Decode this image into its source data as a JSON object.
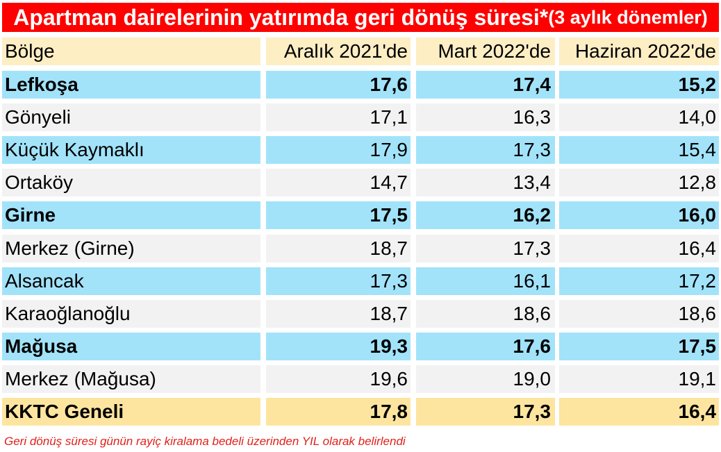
{
  "title": {
    "main": "Apartman dairelerinin yatırımda geri dönüş süresi*",
    "sub": "(3 aylık dönemler)"
  },
  "table": {
    "columns": [
      "Bölge",
      "Aralık 2021'de",
      "Mart 2022'de",
      "Haziran 2022'de"
    ],
    "rows": [
      {
        "region": "Lefkoşa",
        "v1": "17,6",
        "v2": "17,4",
        "v3": "15,2"
      },
      {
        "region": "Gönyeli",
        "v1": "17,1",
        "v2": "16,3",
        "v3": "14,0"
      },
      {
        "region": "Küçük Kaymaklı",
        "v1": "17,9",
        "v2": "17,3",
        "v3": "15,4"
      },
      {
        "region": "Ortaköy",
        "v1": "14,7",
        "v2": "13,4",
        "v3": "12,8"
      },
      {
        "region": "Girne",
        "v1": "17,5",
        "v2": "16,2",
        "v3": "16,0"
      },
      {
        "region": "Merkez (Girne)",
        "v1": "18,7",
        "v2": "17,3",
        "v3": "16,4"
      },
      {
        "region": "Alsancak",
        "v1": "17,3",
        "v2": "16,1",
        "v3": "17,2"
      },
      {
        "region": "Karaoğlanoğlu",
        "v1": "18,7",
        "v2": "18,6",
        "v3": "18,6"
      },
      {
        "region": "Mağusa",
        "v1": "19,3",
        "v2": "17,6",
        "v3": "17,5"
      },
      {
        "region": "Merkez (Mağusa)",
        "v1": "19,6",
        "v2": "19,0",
        "v3": "19,1"
      },
      {
        "region": "KKTC Geneli",
        "v1": "17,8",
        "v2": "17,3",
        "v3": "16,4"
      }
    ]
  },
  "footnote": "Geri dönüş süresi günün rayiç kiralama bedeli üzerinden  YIL  olarak belirlendi",
  "colors": {
    "title_bg": "#ff0000",
    "header_bg": "#fdeec4",
    "blue_row_bg": "#a2e3fa",
    "gray_row_bg": "#f2f2f2",
    "total_row_bg": "#fde5a0",
    "footnote": "#e0201a"
  }
}
